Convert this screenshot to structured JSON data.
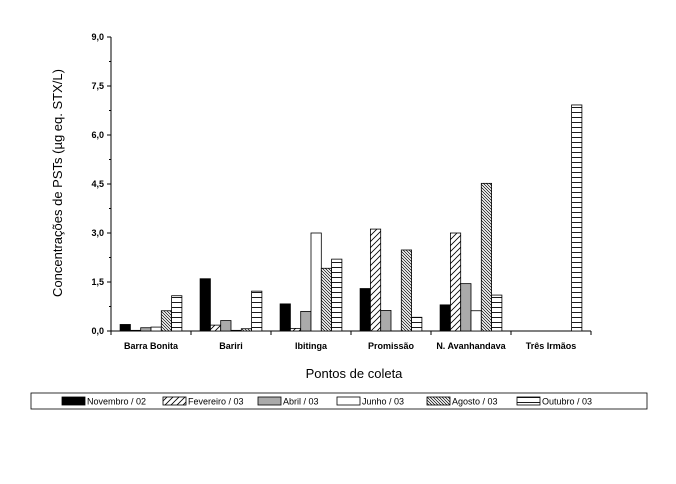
{
  "chart_data": {
    "type": "bar",
    "xlabel": "Pontos de coleta",
    "ylabel": "Concentrações de PSTs (µg eq. STX/L)",
    "ylim": [
      0,
      9
    ],
    "yticks": [
      "0,0",
      "1,5",
      "3,0",
      "4,5",
      "6,0",
      "7,5",
      "9,0"
    ],
    "categories": [
      "Barra Bonita",
      "Bariri",
      "Ibitinga",
      "Promissão",
      "N. Avanhandava",
      "Três Irmãos"
    ],
    "legend_position": "bottom",
    "series": [
      {
        "name": "Novembro / 02",
        "pattern": "solid-black",
        "values": [
          0.2,
          1.6,
          0.83,
          1.3,
          0.8,
          0
        ]
      },
      {
        "name": "Fevereiro / 03",
        "pattern": "diag-fwd-sparse",
        "values": [
          0.02,
          0.18,
          0.08,
          3.12,
          3.0,
          0
        ]
      },
      {
        "name": "Abril / 03",
        "pattern": "solid-gray",
        "values": [
          0.1,
          0.32,
          0.6,
          0.63,
          1.45,
          0
        ]
      },
      {
        "name": "Junho / 03",
        "pattern": "white",
        "values": [
          0.12,
          0.02,
          3.0,
          0.0,
          0.62,
          0
        ]
      },
      {
        "name": "Agosto / 03",
        "pattern": "diag-back-dense",
        "values": [
          0.62,
          0.07,
          1.92,
          2.48,
          4.52,
          0
        ]
      },
      {
        "name": "Outubro / 03",
        "pattern": "horiz",
        "values": [
          1.08,
          1.22,
          2.2,
          0.42,
          1.1,
          6.92
        ]
      }
    ]
  }
}
